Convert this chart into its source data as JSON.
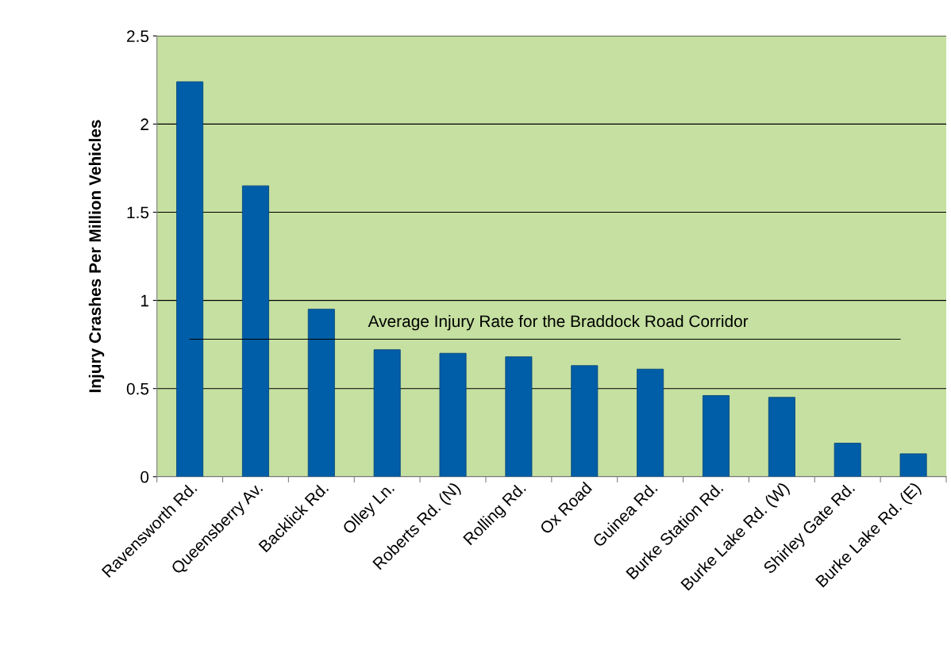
{
  "chart_data": {
    "type": "bar",
    "ylabel": "Injury Crashes Per Million Vehicles",
    "categories": [
      "Ravensworth Rd.",
      "Queensberry Av.",
      "Backlick Rd.",
      "Olley Ln.",
      "Roberts Rd. (N)",
      "Rolling Rd.",
      "Ox Road",
      "Guinea Rd.",
      "Burke Station Rd.",
      "Burke Lake Rd. (W)",
      "Shirley Gate Rd.",
      "Burke Lake Rd. (E)"
    ],
    "values": [
      2.24,
      1.65,
      0.95,
      0.72,
      0.7,
      0.68,
      0.63,
      0.61,
      0.46,
      0.45,
      0.19,
      0.13
    ],
    "color": "#005ea8",
    "ylim": [
      0,
      2.5
    ],
    "yticks": [
      0,
      0.5,
      1,
      1.5,
      2,
      2.5
    ],
    "grid": "y",
    "ref_lines": [
      {
        "axis": "y",
        "value": 0.78,
        "label": "Average Injury Rate for the Braddock Road Corridor",
        "color": "#000000"
      }
    ]
  }
}
